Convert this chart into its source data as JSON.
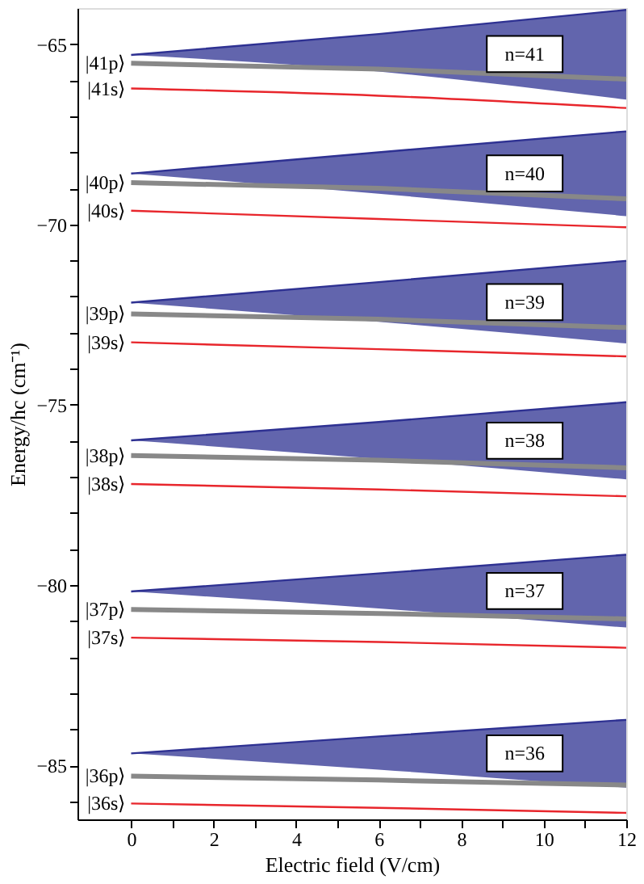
{
  "chart_data": {
    "type": "line",
    "xlabel": "Electric field (V/cm)",
    "ylabel": "Energy/hc (cm⁻¹)",
    "xlim": [
      -1.3,
      12
    ],
    "ylim": [
      -86.5,
      -64.0
    ],
    "xticks": [
      0,
      {
        "value": 1,
        "label": null
      },
      2,
      {
        "value": 3,
        "label": null
      },
      4,
      {
        "value": 5,
        "label": null
      },
      6,
      {
        "value": 7,
        "label": null
      },
      8,
      {
        "value": 9,
        "label": null
      },
      10,
      {
        "value": 11,
        "label": null
      },
      12
    ],
    "yticks": [
      {
        "value": -86,
        "label": null
      },
      -85,
      {
        "value": -84,
        "label": null
      },
      {
        "value": -83,
        "label": null
      },
      {
        "value": -82,
        "label": null
      },
      {
        "value": -81,
        "label": null
      },
      -80,
      {
        "value": -79,
        "label": null
      },
      {
        "value": -78,
        "label": null
      },
      {
        "value": -77,
        "label": null
      },
      {
        "value": -76,
        "label": null
      },
      -75,
      {
        "value": -74,
        "label": null
      },
      {
        "value": -73,
        "label": null
      },
      {
        "value": -72,
        "label": null
      },
      {
        "value": -71,
        "label": null
      },
      -70,
      {
        "value": -69,
        "label": null
      },
      {
        "value": -68,
        "label": null
      },
      {
        "value": -67,
        "label": null
      },
      {
        "value": -66,
        "label": null
      },
      -65
    ],
    "grid": false,
    "marker": "none",
    "line_style": "solid",
    "series": [
      {
        "type": "line",
        "color": "#2e3192",
        "x": [
          0,
          6,
          12
        ],
        "values": [
          -65.3,
          -64.72,
          -64.05
        ],
        "lower": [
          -65.3,
          -65.76,
          -66.54
        ],
        "upper": [
          -65.3,
          -64.72,
          -64.05
        ]
      },
      {
        "type": "line",
        "name": "|41p⟩",
        "color": "#888888",
        "x": [
          0,
          6,
          12
        ],
        "values": [
          -65.53,
          -65.69,
          -65.97
        ]
      },
      {
        "type": "line",
        "name": "|41s⟩",
        "color": "#e8262c",
        "x": [
          0,
          6,
          12
        ],
        "values": [
          -66.23,
          -66.43,
          -66.77
        ]
      },
      {
        "type": "line",
        "color": "#2e3192",
        "x": [
          0,
          6,
          12
        ],
        "values": [
          -68.59,
          -68.0,
          -67.42
        ],
        "lower": [
          -68.59,
          -69.15,
          -69.77
        ],
        "upper": [
          -68.59,
          -68.0,
          -67.42
        ]
      },
      {
        "type": "line",
        "name": "|40p⟩",
        "color": "#888888",
        "x": [
          0,
          6,
          12
        ],
        "values": [
          -68.84,
          -69.0,
          -69.29
        ]
      },
      {
        "type": "line",
        "name": "|40s⟩",
        "color": "#e8262c",
        "x": [
          0,
          6,
          12
        ],
        "values": [
          -69.62,
          -69.85,
          -70.08
        ]
      },
      {
        "type": "line",
        "color": "#2e3192",
        "x": [
          0,
          6,
          12
        ],
        "values": [
          -72.17,
          -71.6,
          -71.01
        ],
        "lower": [
          -72.17,
          -72.7,
          -73.3
        ],
        "upper": [
          -72.17,
          -71.6,
          -71.01
        ]
      },
      {
        "type": "line",
        "name": "|39p⟩",
        "color": "#888888",
        "x": [
          0,
          6,
          12
        ],
        "values": [
          -72.48,
          -72.63,
          -72.86
        ]
      },
      {
        "type": "line",
        "name": "|39s⟩",
        "color": "#e8262c",
        "x": [
          0,
          6,
          12
        ],
        "values": [
          -73.27,
          -73.46,
          -73.66
        ]
      },
      {
        "type": "line",
        "color": "#2e3192",
        "x": [
          0,
          6,
          12
        ],
        "values": [
          -75.99,
          -75.48,
          -74.93
        ],
        "lower": [
          -75.99,
          -76.5,
          -77.07
        ],
        "upper": [
          -75.99,
          -75.48,
          -74.93
        ]
      },
      {
        "type": "line",
        "name": "|38p⟩",
        "color": "#888888",
        "x": [
          0,
          6,
          12
        ],
        "values": [
          -76.41,
          -76.54,
          -76.75
        ]
      },
      {
        "type": "line",
        "name": "|38s⟩",
        "color": "#e8262c",
        "x": [
          0,
          6,
          12
        ],
        "values": [
          -77.2,
          -77.35,
          -77.54
        ]
      },
      {
        "type": "line",
        "color": "#2e3192",
        "x": [
          0,
          6,
          12
        ],
        "values": [
          -80.18,
          -79.68,
          -79.16
        ],
        "lower": [
          -80.18,
          -80.65,
          -81.18
        ],
        "upper": [
          -80.18,
          -79.68,
          -79.16
        ]
      },
      {
        "type": "line",
        "name": "|37p⟩",
        "color": "#888888",
        "x": [
          0,
          6,
          12
        ],
        "values": [
          -80.68,
          -80.79,
          -80.94
        ]
      },
      {
        "type": "line",
        "name": "|37s⟩",
        "color": "#e8262c",
        "x": [
          0,
          6,
          12
        ],
        "values": [
          -81.46,
          -81.58,
          -81.74
        ]
      },
      {
        "type": "line",
        "color": "#2e3192",
        "x": [
          0,
          6,
          12
        ],
        "values": [
          -84.67,
          -84.2,
          -83.74
        ],
        "lower": [
          -84.67,
          -85.12,
          -85.62
        ],
        "upper": [
          -84.67,
          -84.2,
          -83.74
        ]
      },
      {
        "type": "line",
        "name": "|36p⟩",
        "color": "#888888",
        "x": [
          0,
          6,
          12
        ],
        "values": [
          -85.3,
          -85.41,
          -85.55
        ]
      },
      {
        "type": "line",
        "name": "|36s⟩",
        "color": "#e8262c",
        "x": [
          0,
          6,
          12
        ],
        "values": [
          -86.06,
          -86.18,
          -86.32
        ]
      }
    ],
    "annotations": [
      "n=41",
      "n=40",
      "n=39",
      "n=38",
      "n=37",
      "n=36"
    ]
  }
}
